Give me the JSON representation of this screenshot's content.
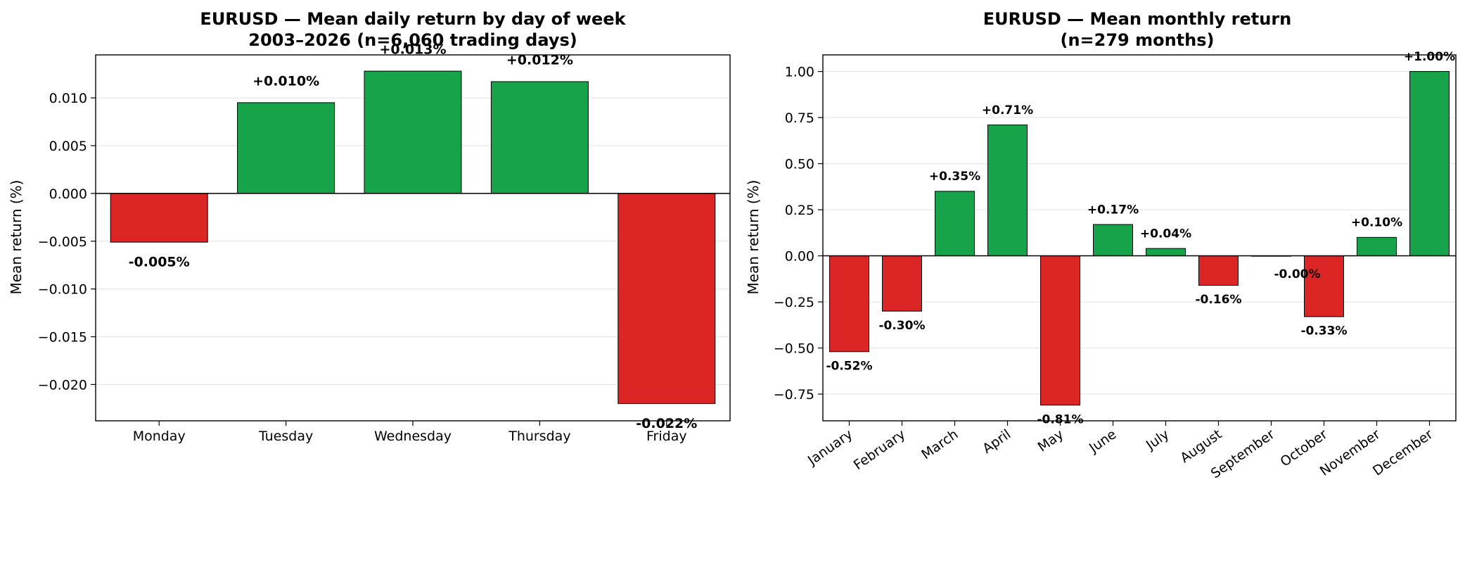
{
  "colors": {
    "positive": "#16a34a",
    "negative": "#dc2626",
    "grid": "#e5e5e5",
    "edge": "#000000"
  },
  "chart_data": [
    {
      "type": "bar",
      "title_line1": "EURUSD — Mean daily return by day of week",
      "title_line2": "2003–2026 (n=6,060 trading days)",
      "ylabel": "Mean return (%)",
      "xlabel": "",
      "categories": [
        "Monday",
        "Tuesday",
        "Wednesday",
        "Thursday",
        "Friday"
      ],
      "values": [
        -0.0051,
        0.0095,
        0.0128,
        0.0117,
        -0.022
      ],
      "data_labels": [
        "-0.005%",
        "+0.010%",
        "+0.013%",
        "+0.012%",
        "-0.022%"
      ],
      "ylim": [
        -0.0238,
        0.0145
      ],
      "yticks": [
        0.01,
        0.005,
        0.0,
        -0.005,
        -0.01,
        -0.015,
        -0.02
      ],
      "ytick_labels": [
        "0.010",
        "0.005",
        "0.000",
        "−0.005",
        "−0.010",
        "−0.015",
        "−0.020"
      ],
      "grid": "horizontal"
    },
    {
      "type": "bar",
      "title_line1": "EURUSD — Mean monthly return",
      "title_line2": "(n=279 months)",
      "ylabel": "Mean return (%)",
      "xlabel": "",
      "categories": [
        "January",
        "February",
        "March",
        "April",
        "May",
        "June",
        "July",
        "August",
        "September",
        "October",
        "November",
        "December"
      ],
      "values": [
        -0.52,
        -0.3,
        0.35,
        0.71,
        -0.81,
        0.17,
        0.04,
        -0.16,
        -0.002,
        -0.33,
        0.1,
        1.0
      ],
      "data_labels": [
        "-0.52%",
        "-0.30%",
        "+0.35%",
        "+0.71%",
        "-0.81%",
        "+0.17%",
        "+0.04%",
        "-0.16%",
        "-0.00%",
        "-0.33%",
        "+0.10%",
        "+1.00%"
      ],
      "ylim": [
        -0.895,
        1.09
      ],
      "yticks": [
        1.0,
        0.75,
        0.5,
        0.25,
        0.0,
        -0.25,
        -0.5,
        -0.75
      ],
      "ytick_labels": [
        "1.00",
        "0.75",
        "0.50",
        "0.25",
        "0.00",
        "−0.25",
        "−0.50",
        "−0.75"
      ],
      "grid": "horizontal"
    }
  ]
}
